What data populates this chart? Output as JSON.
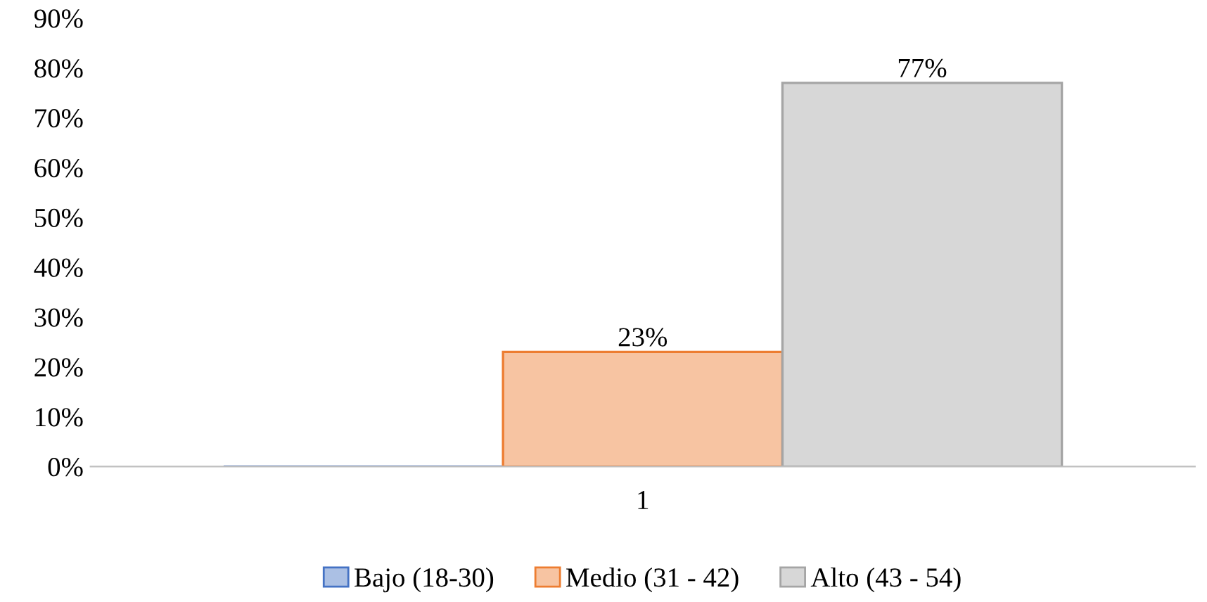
{
  "chart_data": {
    "type": "bar",
    "categories": [
      "1"
    ],
    "series": [
      {
        "name": "Bajo (18-30)",
        "color": "#4472c4",
        "values": [
          0
        ],
        "value_labels": [
          null
        ]
      },
      {
        "name": "Medio (31 - 42)",
        "color": "#ed7d31",
        "values": [
          23
        ],
        "value_labels": [
          "23%"
        ]
      },
      {
        "name": "Alto (43 - 54)",
        "color": "#a5a5a5",
        "values": [
          77
        ],
        "value_labels": [
          "77%"
        ]
      }
    ],
    "ylim": [
      0,
      90
    ],
    "yticks": [
      {
        "value": 0,
        "label": "0%"
      },
      {
        "value": 10,
        "label": "10%"
      },
      {
        "value": 20,
        "label": "20%"
      },
      {
        "value": 30,
        "label": "30%"
      },
      {
        "value": 40,
        "label": "40%"
      },
      {
        "value": 50,
        "label": "50%"
      },
      {
        "value": 60,
        "label": "60%"
      },
      {
        "value": 70,
        "label": "70%"
      },
      {
        "value": 80,
        "label": "80%"
      },
      {
        "value": 90,
        "label": "90%"
      }
    ],
    "grid": false,
    "legend": "bottom"
  }
}
